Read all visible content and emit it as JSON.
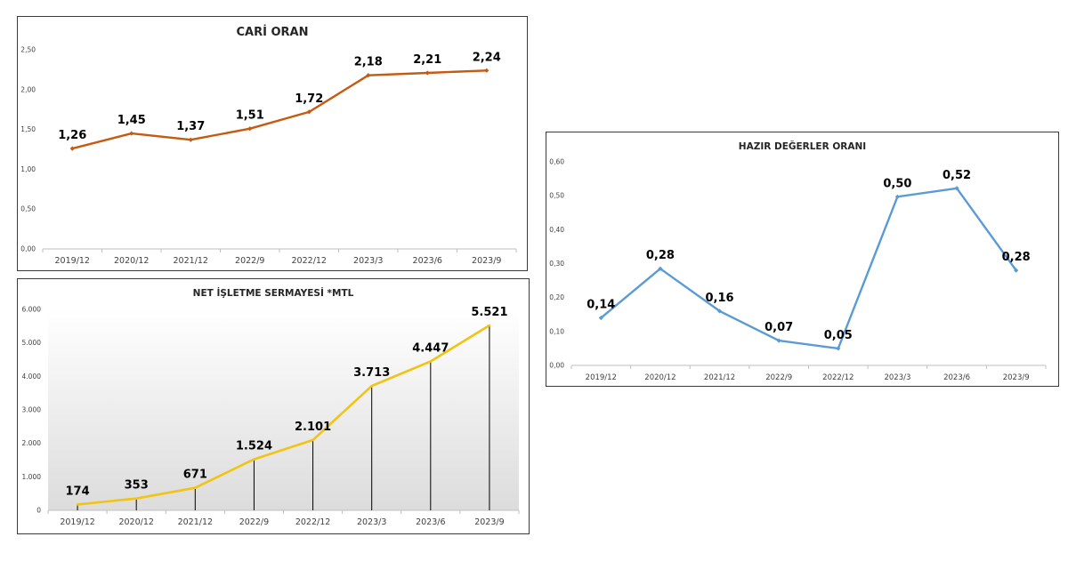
{
  "chart_data": [
    {
      "id": "cari-oran",
      "type": "line",
      "title": "CARİ ORAN",
      "categories": [
        "2019/12",
        "2020/12",
        "2021/12",
        "2022/9",
        "2022/12",
        "2023/3",
        "2023/6",
        "2023/9"
      ],
      "values": [
        1.26,
        1.45,
        1.37,
        1.51,
        1.72,
        2.18,
        2.21,
        2.24
      ],
      "value_labels": [
        "1,26",
        "1,45",
        "1,37",
        "1,51",
        "1,72",
        "2,18",
        "2,21",
        "2,24"
      ],
      "ylim": [
        0,
        2.5
      ],
      "yticks": [
        0,
        0.5,
        1,
        1.5,
        2,
        2.5
      ],
      "ytick_labels": [
        "0,00",
        "0,50",
        "1,00",
        "1,50",
        "2,00",
        "2,50"
      ],
      "xlabel": "",
      "ylabel": "",
      "grid": false,
      "color": "#c55a11"
    },
    {
      "id": "net-isletme-sermayesi",
      "type": "area",
      "title": "NET İŞLETME SERMAYESİ *MTL",
      "categories": [
        "2019/12",
        "2020/12",
        "2021/12",
        "2022/9",
        "2022/12",
        "2023/3",
        "2023/6",
        "2023/9"
      ],
      "values": [
        174,
        353,
        671,
        1524,
        2101,
        3713,
        4447,
        5521
      ],
      "value_labels": [
        "174",
        "353",
        "671",
        "1.524",
        "2.101",
        "3.713",
        "4.447",
        "5.521"
      ],
      "ylim": [
        0,
        6000
      ],
      "yticks": [
        0,
        1000,
        2000,
        3000,
        4000,
        5000,
        6000
      ],
      "ytick_labels": [
        "0",
        "1.000",
        "2.000",
        "3.000",
        "4.000",
        "5.000",
        "6.000"
      ],
      "xlabel": "",
      "ylabel": "",
      "grid": false,
      "drop_lines": true,
      "color": "#f2c311"
    },
    {
      "id": "hazir-degerler-orani",
      "type": "line",
      "title": "HAZIR DEĞERLER ORANI",
      "categories": [
        "2019/12",
        "2020/12",
        "2021/12",
        "2022/9",
        "2022/12",
        "2023/3",
        "2023/6",
        "2023/9"
      ],
      "values": [
        0.14,
        0.285,
        0.16,
        0.073,
        0.05,
        0.497,
        0.522,
        0.28
      ],
      "value_labels": [
        "0,14",
        "0,28",
        "0,16",
        "0,07",
        "0,05",
        "0,50",
        "0,52",
        "0,28"
      ],
      "ylim": [
        0,
        0.6
      ],
      "yticks": [
        0,
        0.1,
        0.2,
        0.3,
        0.4,
        0.5,
        0.6
      ],
      "ytick_labels": [
        "0,00",
        "0,10",
        "0,20",
        "0,30",
        "0,40",
        "0,50",
        "0,60"
      ],
      "xlabel": "",
      "ylabel": "",
      "grid": false,
      "color": "#5b9bd5"
    }
  ]
}
